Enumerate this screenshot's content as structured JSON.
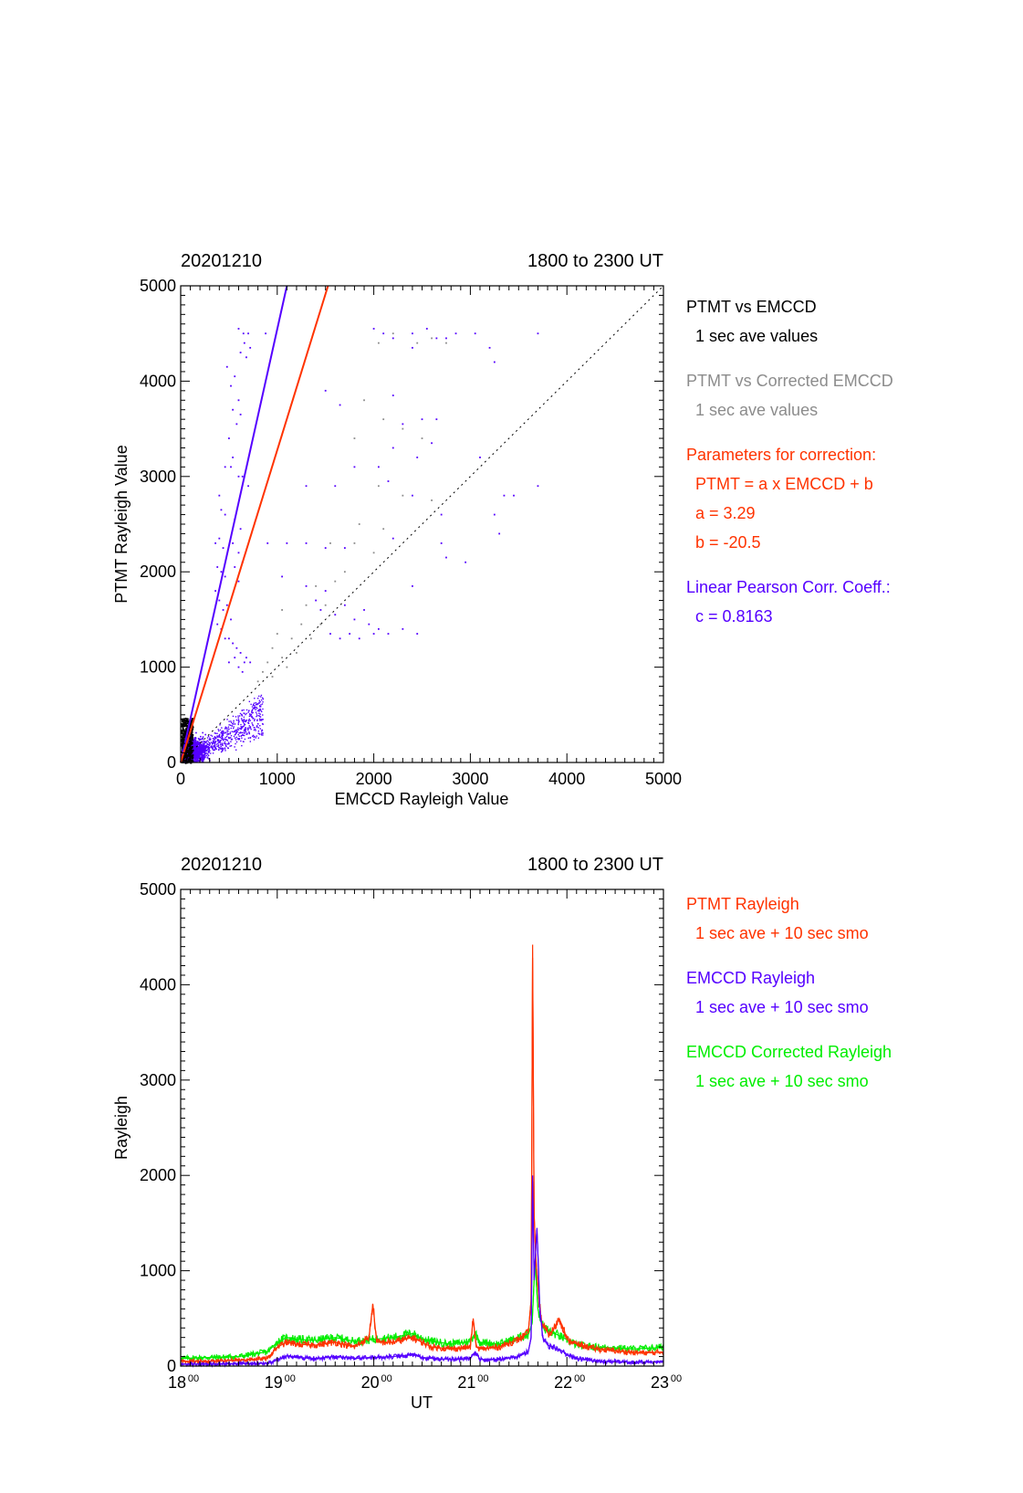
{
  "colors": {
    "black": "#000000",
    "gray": "#8c8c8c",
    "red": "#ff3300",
    "blue": "#5500ff",
    "green": "#00ee00"
  },
  "chart_data": [
    {
      "type": "scatter",
      "title_left": "20201210",
      "title_right": "1800 to 2300 UT",
      "xlabel": "EMCCD Rayleigh Value",
      "ylabel": "PTMT Rayleigh Value",
      "xlim": [
        0,
        5000
      ],
      "ylim": [
        0,
        5000
      ],
      "x_ticks": [
        "0",
        "1000",
        "2000",
        "3000",
        "4000",
        "5000"
      ],
      "y_ticks": [
        "0",
        "1000",
        "2000",
        "3000",
        "4000",
        "5000"
      ],
      "grid": false,
      "legend": [
        {
          "text": "PTMT vs EMCCD",
          "color": "black"
        },
        {
          "text": "1 sec ave values",
          "color": "black"
        },
        {
          "text": "PTMT vs Corrected EMCCD",
          "color": "gray"
        },
        {
          "text": "1 sec ave values",
          "color": "gray"
        },
        {
          "text": "Parameters for correction:",
          "color": "red"
        },
        {
          "text": "PTMT = a x EMCCD + b",
          "color": "red"
        },
        {
          "text": "a = 3.29",
          "color": "red"
        },
        {
          "text": "b =  -20.5",
          "color": "red"
        },
        {
          "text": "Linear Pearson Corr. Coeff.:",
          "color": "blue"
        },
        {
          "text": "c = 0.8163",
          "color": "blue"
        }
      ],
      "fit_lines": [
        {
          "color": "blue",
          "x": [
            0,
            1100
          ],
          "y": [
            0,
            5000
          ]
        },
        {
          "color": "red",
          "x": [
            0,
            1526
          ],
          "y": [
            -20.5,
            5000
          ]
        }
      ],
      "reference_line": {
        "style": "dotted",
        "x": [
          0,
          5000
        ],
        "y": [
          0,
          5000
        ]
      },
      "series": [
        {
          "color": "blue",
          "points": [
            [
              600,
              4550
            ],
            [
              650,
              4500
            ],
            [
              700,
              4500
            ],
            [
              880,
              4500
            ],
            [
              620,
              4300
            ],
            [
              680,
              4250
            ],
            [
              720,
              4350
            ],
            [
              660,
              4400
            ],
            [
              480,
              4150
            ],
            [
              520,
              3950
            ],
            [
              560,
              4050
            ],
            [
              600,
              3800
            ],
            [
              540,
              3700
            ],
            [
              580,
              3550
            ],
            [
              620,
              3650
            ],
            [
              500,
              3400
            ],
            [
              460,
              3100
            ],
            [
              520,
              3100
            ],
            [
              540,
              3200
            ],
            [
              400,
              2800
            ],
            [
              600,
              3000
            ],
            [
              640,
              3000
            ],
            [
              700,
              2900
            ],
            [
              420,
              2650
            ],
            [
              460,
              2600
            ],
            [
              560,
              2550
            ],
            [
              620,
              2450
            ],
            [
              360,
              2300
            ],
            [
              400,
              2350
            ],
            [
              440,
              2250
            ],
            [
              540,
              2300
            ],
            [
              600,
              2200
            ],
            [
              640,
              2100
            ],
            [
              380,
              2050
            ],
            [
              420,
              2000
            ],
            [
              460,
              1950
            ],
            [
              560,
              2050
            ],
            [
              600,
              1900
            ],
            [
              360,
              1800
            ],
            [
              400,
              1700
            ],
            [
              440,
              1600
            ],
            [
              480,
              1650
            ],
            [
              520,
              1500
            ],
            [
              380,
              1450
            ],
            [
              420,
              1400
            ],
            [
              460,
              1300
            ],
            [
              500,
              1300
            ],
            [
              540,
              1250
            ],
            [
              580,
              1200
            ],
            [
              620,
              1150
            ],
            [
              660,
              1050
            ],
            [
              560,
              1100
            ],
            [
              600,
              1000
            ],
            [
              640,
              950
            ],
            [
              500,
              1050
            ],
            [
              680,
              1100
            ],
            [
              720,
              1050
            ],
            [
              1300,
              2900
            ],
            [
              1600,
              2900
            ],
            [
              1800,
              3100
            ],
            [
              1650,
              3750
            ],
            [
              1500,
              3900
            ],
            [
              2000,
              4550
            ],
            [
              2100,
              4500
            ],
            [
              2200,
              4450
            ],
            [
              2400,
              4500
            ],
            [
              2550,
              4550
            ],
            [
              2650,
              4450
            ],
            [
              2750,
              4450
            ],
            [
              2850,
              4500
            ],
            [
              3050,
              4500
            ],
            [
              3200,
              4350
            ],
            [
              3250,
              4200
            ],
            [
              3700,
              4500
            ],
            [
              2400,
              4350
            ],
            [
              2200,
              3850
            ],
            [
              2500,
              3600
            ],
            [
              2300,
              3550
            ],
            [
              2650,
              3600
            ],
            [
              2200,
              3300
            ],
            [
              2450,
              3200
            ],
            [
              2600,
              3350
            ],
            [
              2050,
              3100
            ],
            [
              2150,
              2950
            ],
            [
              2400,
              2800
            ],
            [
              2700,
              2600
            ],
            [
              3100,
              3200
            ],
            [
              3350,
              2800
            ],
            [
              3450,
              2800
            ],
            [
              3700,
              2900
            ],
            [
              3250,
              2600
            ],
            [
              3300,
              2400
            ],
            [
              2700,
              2300
            ],
            [
              2750,
              2150
            ],
            [
              2950,
              2100
            ],
            [
              2200,
              2350
            ],
            [
              2400,
              1850
            ],
            [
              2300,
              1400
            ],
            [
              2450,
              1350
            ],
            [
              2150,
              1350
            ],
            [
              2050,
              1400
            ],
            [
              1600,
              1550
            ],
            [
              1500,
              1800
            ],
            [
              1700,
              1650
            ],
            [
              1800,
              1500
            ],
            [
              1900,
              1600
            ],
            [
              1950,
              1450
            ],
            [
              2000,
              1350
            ],
            [
              1850,
              1300
            ],
            [
              1750,
              1350
            ],
            [
              1650,
              1300
            ],
            [
              1550,
              1350
            ],
            [
              1700,
              2250
            ],
            [
              1500,
              2250
            ],
            [
              1300,
              2300
            ],
            [
              1100,
              2300
            ],
            [
              900,
              2300
            ],
            [
              1050,
              1950
            ],
            [
              1300,
              1850
            ],
            [
              1450,
              1600
            ],
            [
              1400,
              1700
            ]
          ]
        },
        {
          "color": "gray",
          "points": [
            [
              2050,
              4400
            ],
            [
              2200,
              4500
            ],
            [
              2450,
              4400
            ],
            [
              2600,
              4450
            ],
            [
              2750,
              4400
            ],
            [
              1900,
              3800
            ],
            [
              2100,
              3600
            ],
            [
              2300,
              3500
            ],
            [
              2500,
              3400
            ],
            [
              1800,
              3400
            ],
            [
              2050,
              2900
            ],
            [
              2300,
              2800
            ],
            [
              2600,
              2750
            ],
            [
              1850,
              2500
            ],
            [
              2100,
              2450
            ],
            [
              1550,
              2300
            ],
            [
              1800,
              2300
            ],
            [
              2000,
              2200
            ],
            [
              1700,
              2000
            ],
            [
              1600,
              1900
            ],
            [
              1400,
              1850
            ],
            [
              1500,
              1650
            ],
            [
              1300,
              1650
            ],
            [
              1050,
              1600
            ],
            [
              1250,
              1450
            ],
            [
              1150,
              1300
            ],
            [
              1000,
              1350
            ],
            [
              950,
              1200
            ],
            [
              1050,
              1100
            ],
            [
              900,
              1050
            ],
            [
              850,
              950
            ],
            [
              950,
              900
            ],
            [
              800,
              850
            ],
            [
              1100,
              1000
            ],
            [
              1200,
              1150
            ],
            [
              1350,
              1300
            ],
            [
              1450,
              1450
            ]
          ]
        }
      ]
    },
    {
      "type": "line",
      "title_left": "20201210",
      "title_right": "1800 to 2300 UT",
      "xlabel": "UT",
      "ylabel": "Rayleigh",
      "xlim": [
        18,
        23
      ],
      "ylim": [
        0,
        5000
      ],
      "x_ticks": [
        {
          "base": "18",
          "sup": "00"
        },
        {
          "base": "19",
          "sup": "00"
        },
        {
          "base": "20",
          "sup": "00"
        },
        {
          "base": "21",
          "sup": "00"
        },
        {
          "base": "22",
          "sup": "00"
        },
        {
          "base": "23",
          "sup": "00"
        }
      ],
      "y_ticks": [
        "0",
        "1000",
        "2000",
        "3000",
        "4000",
        "5000"
      ],
      "grid": false,
      "legend": [
        {
          "text": "PTMT Rayleigh",
          "color": "red"
        },
        {
          "text": "1 sec ave + 10 sec smo",
          "color": "red"
        },
        {
          "text": "EMCCD Rayleigh",
          "color": "blue"
        },
        {
          "text": "1 sec ave + 10 sec smo",
          "color": "blue"
        },
        {
          "text": "EMCCD Corrected Rayleigh",
          "color": "green"
        },
        {
          "text": "1 sec ave + 10 sec smo",
          "color": "green"
        }
      ],
      "series": [
        {
          "name": "EMCCD Corrected Rayleigh",
          "color": "green",
          "x": [
            18.0,
            18.3,
            18.6,
            18.9,
            19.0,
            19.1,
            19.2,
            19.4,
            19.6,
            19.8,
            20.0,
            20.2,
            20.4,
            20.5,
            20.6,
            20.8,
            21.0,
            21.05,
            21.1,
            21.3,
            21.5,
            21.6,
            21.64,
            21.67,
            21.7,
            21.73,
            21.76,
            21.8,
            21.85,
            21.9,
            21.95,
            22.0,
            22.1,
            22.3,
            22.5,
            22.7,
            22.9,
            23.0
          ],
          "y": [
            80,
            90,
            100,
            150,
            250,
            300,
            280,
            270,
            300,
            260,
            280,
            300,
            340,
            290,
            260,
            230,
            260,
            350,
            250,
            230,
            300,
            330,
            450,
            1100,
            600,
            480,
            400,
            380,
            350,
            330,
            300,
            280,
            220,
            200,
            190,
            180,
            190,
            200
          ]
        },
        {
          "name": "PTMT Rayleigh",
          "color": "red",
          "x": [
            18.0,
            18.3,
            18.6,
            18.9,
            19.0,
            19.1,
            19.2,
            19.4,
            19.6,
            19.8,
            19.95,
            19.99,
            20.03,
            20.2,
            20.4,
            20.5,
            20.6,
            20.8,
            21.0,
            21.03,
            21.06,
            21.1,
            21.3,
            21.5,
            21.6,
            21.63,
            21.645,
            21.66,
            21.68,
            21.71,
            21.74,
            21.78,
            21.82,
            21.87,
            21.92,
            21.97,
            22.0,
            22.1,
            22.3,
            22.5,
            22.7,
            22.9,
            23.0
          ],
          "y": [
            50,
            50,
            60,
            80,
            200,
            250,
            230,
            220,
            250,
            200,
            300,
            650,
            250,
            250,
            300,
            250,
            200,
            180,
            200,
            500,
            200,
            180,
            200,
            280,
            350,
            700,
            4420,
            1600,
            1100,
            700,
            450,
            380,
            330,
            400,
            500,
            380,
            280,
            230,
            180,
            160,
            140,
            140,
            150
          ]
        },
        {
          "name": "EMCCD Rayleigh",
          "color": "blue",
          "x": [
            18.0,
            18.3,
            18.6,
            18.9,
            19.0,
            19.1,
            19.2,
            19.4,
            19.6,
            19.8,
            20.0,
            20.2,
            20.4,
            20.5,
            20.6,
            20.8,
            21.0,
            21.05,
            21.1,
            21.3,
            21.5,
            21.6,
            21.63,
            21.645,
            21.66,
            21.69,
            21.72,
            21.75,
            21.8,
            21.85,
            21.9,
            21.95,
            22.0,
            22.1,
            22.3,
            22.5,
            22.7,
            22.9,
            23.0
          ],
          "y": [
            20,
            20,
            25,
            30,
            60,
            110,
            90,
            80,
            100,
            80,
            90,
            100,
            120,
            90,
            80,
            70,
            80,
            150,
            70,
            70,
            100,
            150,
            300,
            2000,
            900,
            1450,
            600,
            300,
            220,
            200,
            180,
            160,
            120,
            80,
            50,
            45,
            40,
            45,
            50
          ]
        }
      ]
    }
  ]
}
